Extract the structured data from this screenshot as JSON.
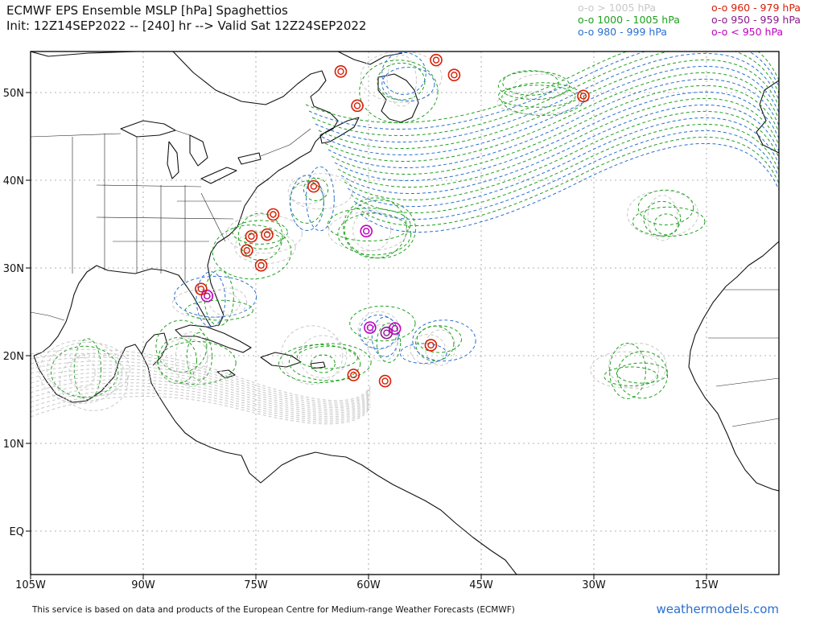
{
  "header": {
    "title_line1": "ECMWF EPS Ensemble MSLP [hPa] Spaghettios",
    "title_line2": "Init: 12Z14SEP2022 -- [240] hr --> Valid Sat 12Z24SEP2022"
  },
  "legend": [
    {
      "label": "o-o > 1005 hPa",
      "color": "#c8c8c8"
    },
    {
      "label": "o-o 1000 - 1005 hPa",
      "color": "#1fa01f"
    },
    {
      "label": "o-o 980 - 999 hPa",
      "color": "#2a6fcf"
    },
    {
      "label": "o-o 960 - 979 hPa",
      "color": "#d81e05"
    },
    {
      "label": "o-o 950 - 959 hPa",
      "color": "#8b1a8b"
    },
    {
      "label": "o-o < 950 hPa",
      "color": "#c000c0"
    }
  ],
  "axes": {
    "lat_labels": [
      "50N",
      "40N",
      "30N",
      "20N",
      "10N",
      "EQ"
    ],
    "lon_labels": [
      "105W",
      "90W",
      "75W",
      "60W",
      "45W",
      "30W",
      "15W"
    ]
  },
  "footer": {
    "credit": "This service is based on data and products of the European Centre for Medium-range Weather Forecasts (ECMWF)",
    "brand": "weathermodels.com"
  },
  "colors": {
    "gt1005": "#c8c8c8",
    "c1000_1005": "#1fa01f",
    "c980_999": "#2a6fcf",
    "c960_979": "#d81e05",
    "c950_959": "#8b1a8b",
    "lt950": "#c000c0",
    "brand": "#2a6fcf"
  },
  "lows": [
    {
      "lon": -81.5,
      "lat": 26.8,
      "category": "lt950"
    },
    {
      "lon": -82.3,
      "lat": 27.6,
      "category": "c960_979"
    },
    {
      "lon": -73.5,
      "lat": 33.8,
      "category": "c960_979"
    },
    {
      "lon": -75.6,
      "lat": 33.6,
      "category": "c960_979"
    },
    {
      "lon": -76.2,
      "lat": 32.0,
      "category": "c960_979"
    },
    {
      "lon": -74.3,
      "lat": 30.3,
      "category": "c960_979"
    },
    {
      "lon": -67.3,
      "lat": 39.3,
      "category": "c960_979"
    },
    {
      "lon": -72.7,
      "lat": 36.1,
      "category": "c960_979"
    },
    {
      "lon": -60.3,
      "lat": 34.2,
      "category": "lt950"
    },
    {
      "lon": -59.8,
      "lat": 23.2,
      "category": "lt950"
    },
    {
      "lon": -57.6,
      "lat": 22.6,
      "category": "c950_959"
    },
    {
      "lon": -56.5,
      "lat": 23.1,
      "category": "lt950"
    },
    {
      "lon": -51.7,
      "lat": 21.2,
      "category": "c960_979"
    },
    {
      "lon": -57.8,
      "lat": 17.1,
      "category": "c960_979"
    },
    {
      "lon": -62.0,
      "lat": 17.8,
      "category": "c960_979"
    },
    {
      "lon": -63.7,
      "lat": 52.4,
      "category": "c960_979"
    },
    {
      "lon": -61.5,
      "lat": 48.5,
      "category": "c960_979"
    },
    {
      "lon": -51.0,
      "lat": 53.7,
      "category": "c960_979"
    },
    {
      "lon": -48.6,
      "lat": 52.0,
      "category": "c960_979"
    },
    {
      "lon": -31.4,
      "lat": 49.6,
      "category": "c960_979"
    }
  ],
  "clusters": [
    {
      "lon": -80,
      "lat": 26,
      "category": "c980_999"
    },
    {
      "lon": -74,
      "lat": 33,
      "category": "c1000_1005"
    },
    {
      "lon": -68,
      "lat": 38,
      "category": "c980_999"
    },
    {
      "lon": -60,
      "lat": 34,
      "category": "c1000_1005"
    },
    {
      "lon": -58,
      "lat": 22.5,
      "category": "c980_999"
    },
    {
      "lon": -51.5,
      "lat": 21,
      "category": "c980_999"
    },
    {
      "lon": -55,
      "lat": 51,
      "category": "c980_999"
    },
    {
      "lon": -38,
      "lat": 50,
      "category": "c1000_1005"
    },
    {
      "lon": -25,
      "lat": 18,
      "category": "c1000_1005"
    },
    {
      "lon": -84,
      "lat": 20,
      "category": "c1000_1005"
    },
    {
      "lon": -66,
      "lat": 20,
      "category": "c1000_1005"
    },
    {
      "lon": -97,
      "lat": 18,
      "category": "gt1005"
    },
    {
      "lon": -20,
      "lat": 36,
      "category": "c1000_1005"
    }
  ]
}
